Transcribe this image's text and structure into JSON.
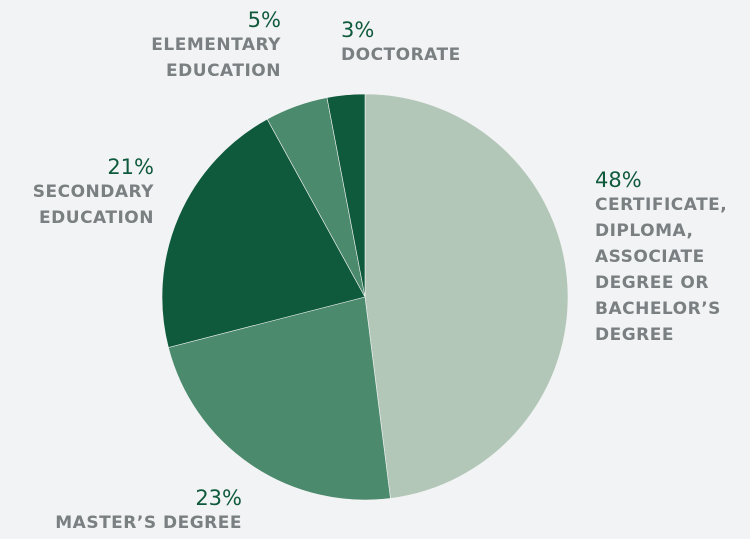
{
  "chart_data": {
    "type": "pie",
    "title": "",
    "categories": [
      "CERTIFICATE, DIPLOMA, ASSOCIATE DEGREE OR BACHELOR'S DEGREE",
      "MASTER'S DEGREE",
      "SECONDARY EDUCATION",
      "ELEMENTARY EDUCATION",
      "DOCTORATE"
    ],
    "values": [
      48,
      23,
      21,
      5,
      3
    ],
    "labels": [
      {
        "percent": "48%",
        "lines": [
          "CERTIFICATE,",
          "DIPLOMA,",
          "ASSOCIATE",
          "DEGREE OR",
          "BACHELOR’S",
          "DEGREE"
        ]
      },
      {
        "percent": "23%",
        "lines": [
          "MASTER’S DEGREE"
        ]
      },
      {
        "percent": "21%",
        "lines": [
          "SECONDARY",
          "EDUCATION"
        ]
      },
      {
        "percent": "5%",
        "lines": [
          "ELEMENTARY",
          "EDUCATION"
        ]
      },
      {
        "percent": "3%",
        "lines": [
          "DOCTORATE"
        ]
      }
    ],
    "colors": {
      "certificate": "#b3c7b8",
      "masters": "#4b8a6c",
      "secondary": "#0f5a3c",
      "elementary": "#4b8a6c",
      "doctorate": "#0f5a3c"
    }
  }
}
